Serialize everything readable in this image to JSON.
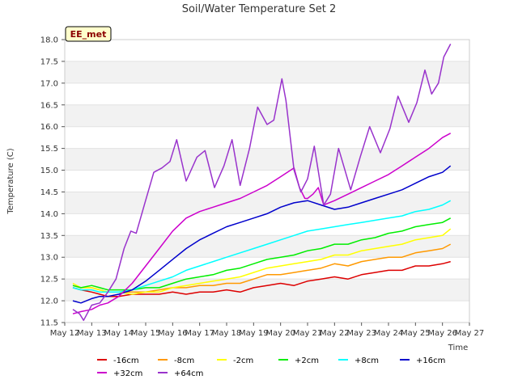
{
  "chart_data": {
    "type": "line",
    "title": "Soil/Water Temperature Set 2",
    "xlabel": "Time",
    "ylabel": "Temperature (C)",
    "badge": "EE_met",
    "xlim": [
      12,
      27
    ],
    "ylim": [
      11.5,
      18.0
    ],
    "x_ticks": [
      {
        "v": 12,
        "label": "May 12"
      },
      {
        "v": 13,
        "label": "May 13"
      },
      {
        "v": 14,
        "label": "May 14"
      },
      {
        "v": 15,
        "label": "May 15"
      },
      {
        "v": 16,
        "label": "May 16"
      },
      {
        "v": 17,
        "label": "May 17"
      },
      {
        "v": 18,
        "label": "May 18"
      },
      {
        "v": 19,
        "label": "May 19"
      },
      {
        "v": 20,
        "label": "May 20"
      },
      {
        "v": 21,
        "label": "May 21"
      },
      {
        "v": 22,
        "label": "May 22"
      },
      {
        "v": 23,
        "label": "May 23"
      },
      {
        "v": 24,
        "label": "May 24"
      },
      {
        "v": 25,
        "label": "May 25"
      },
      {
        "v": 26,
        "label": "May 26"
      },
      {
        "v": 27,
        "label": "May 27"
      }
    ],
    "y_ticks": [
      {
        "v": 11.5,
        "label": "11.5"
      },
      {
        "v": 12.0,
        "label": "12.0"
      },
      {
        "v": 12.5,
        "label": "12.5"
      },
      {
        "v": 13.0,
        "label": "13.0"
      },
      {
        "v": 13.5,
        "label": "13.5"
      },
      {
        "v": 14.0,
        "label": "14.0"
      },
      {
        "v": 14.5,
        "label": "14.5"
      },
      {
        "v": 15.0,
        "label": "15.0"
      },
      {
        "v": 15.5,
        "label": "15.5"
      },
      {
        "v": 16.0,
        "label": "16.0"
      },
      {
        "v": 16.5,
        "label": "16.5"
      },
      {
        "v": 17.0,
        "label": "17.0"
      },
      {
        "v": 17.5,
        "label": "17.5"
      },
      {
        "v": 18.0,
        "label": "18.0"
      }
    ],
    "series": [
      {
        "name": "-16cm",
        "color": "#dd0000",
        "x": [
          12.3,
          12.6,
          13,
          13.3,
          13.6,
          14,
          14.5,
          15,
          15.5,
          16,
          16.5,
          17,
          17.5,
          18,
          18.5,
          19,
          19.5,
          20,
          20.5,
          21,
          21.5,
          22,
          22.5,
          23,
          23.5,
          24,
          24.5,
          25,
          25.5,
          26,
          26.3
        ],
        "y": [
          12.3,
          12.25,
          12.2,
          12.15,
          12.1,
          12.1,
          12.15,
          12.15,
          12.15,
          12.2,
          12.15,
          12.2,
          12.2,
          12.25,
          12.2,
          12.3,
          12.35,
          12.4,
          12.35,
          12.45,
          12.5,
          12.55,
          12.5,
          12.6,
          12.65,
          12.7,
          12.7,
          12.8,
          12.8,
          12.85,
          12.9
        ]
      },
      {
        "name": "-8cm",
        "color": "#ff9900",
        "x": [
          12.3,
          12.6,
          13,
          13.3,
          13.6,
          14,
          14.5,
          15,
          15.5,
          16,
          16.5,
          17,
          17.5,
          18,
          18.5,
          19,
          19.5,
          20,
          20.5,
          21,
          21.5,
          22,
          22.5,
          23,
          23.5,
          24,
          24.5,
          25,
          25.5,
          26,
          26.3
        ],
        "y": [
          12.35,
          12.3,
          12.3,
          12.25,
          12.2,
          12.2,
          12.2,
          12.2,
          12.25,
          12.3,
          12.3,
          12.35,
          12.35,
          12.4,
          12.4,
          12.5,
          12.6,
          12.6,
          12.65,
          12.7,
          12.75,
          12.85,
          12.8,
          12.9,
          12.95,
          13.0,
          13.0,
          13.1,
          13.15,
          13.2,
          13.3
        ]
      },
      {
        "name": "-2cm",
        "color": "#ffff00",
        "x": [
          12.3,
          12.6,
          13,
          13.3,
          13.6,
          14,
          14.5,
          15,
          15.5,
          16,
          16.5,
          17,
          17.5,
          18,
          18.5,
          19,
          19.5,
          20,
          20.5,
          21,
          21.5,
          22,
          22.5,
          23,
          23.5,
          24,
          24.5,
          25,
          25.5,
          26,
          26.3
        ],
        "y": [
          12.4,
          12.3,
          12.3,
          12.25,
          12.2,
          12.2,
          12.15,
          12.2,
          12.2,
          12.3,
          12.35,
          12.4,
          12.45,
          12.5,
          12.55,
          12.65,
          12.75,
          12.8,
          12.85,
          12.9,
          12.95,
          13.05,
          13.05,
          13.15,
          13.2,
          13.25,
          13.3,
          13.4,
          13.45,
          13.5,
          13.65
        ]
      },
      {
        "name": "+2cm",
        "color": "#00ee00",
        "x": [
          12.3,
          12.6,
          13,
          13.3,
          13.6,
          14,
          14.5,
          15,
          15.5,
          16,
          16.5,
          17,
          17.5,
          18,
          18.5,
          19,
          19.5,
          20,
          20.5,
          21,
          21.5,
          22,
          22.5,
          23,
          23.5,
          24,
          24.5,
          25,
          25.5,
          26,
          26.3
        ],
        "y": [
          12.35,
          12.3,
          12.35,
          12.3,
          12.25,
          12.25,
          12.25,
          12.3,
          12.3,
          12.4,
          12.5,
          12.55,
          12.6,
          12.7,
          12.75,
          12.85,
          12.95,
          13.0,
          13.05,
          13.15,
          13.2,
          13.3,
          13.3,
          13.4,
          13.45,
          13.55,
          13.6,
          13.7,
          13.75,
          13.8,
          13.9
        ]
      },
      {
        "name": "+8cm",
        "color": "#00ffff",
        "x": [
          12.3,
          12.6,
          13,
          13.3,
          13.6,
          14,
          14.5,
          15,
          15.5,
          16,
          16.5,
          17,
          17.5,
          18,
          18.5,
          19,
          19.5,
          20,
          20.5,
          21,
          21.5,
          22,
          22.5,
          23,
          23.5,
          24,
          24.5,
          25,
          25.5,
          26,
          26.3
        ],
        "y": [
          12.3,
          12.25,
          12.25,
          12.2,
          12.2,
          12.2,
          12.25,
          12.35,
          12.45,
          12.55,
          12.7,
          12.8,
          12.9,
          13.0,
          13.1,
          13.2,
          13.3,
          13.4,
          13.5,
          13.6,
          13.65,
          13.7,
          13.75,
          13.8,
          13.85,
          13.9,
          13.95,
          14.05,
          14.1,
          14.2,
          14.3
        ]
      },
      {
        "name": "+16cm",
        "color": "#0000cc",
        "x": [
          12.3,
          12.6,
          13,
          13.3,
          13.6,
          14,
          14.5,
          15,
          15.5,
          16,
          16.5,
          17,
          17.5,
          18,
          18.5,
          19,
          19.5,
          20,
          20.5,
          21,
          21.5,
          22,
          22.5,
          23,
          23.5,
          24,
          24.5,
          25,
          25.5,
          26,
          26.3
        ],
        "y": [
          12.0,
          11.95,
          12.05,
          12.1,
          12.1,
          12.15,
          12.25,
          12.45,
          12.7,
          12.95,
          13.2,
          13.4,
          13.55,
          13.7,
          13.8,
          13.9,
          14.0,
          14.15,
          14.25,
          14.3,
          14.2,
          14.1,
          14.15,
          14.25,
          14.35,
          14.45,
          14.55,
          14.7,
          14.85,
          14.95,
          15.1
        ]
      },
      {
        "name": "+32cm",
        "color": "#cc00cc",
        "x": [
          12.3,
          12.6,
          13,
          13.3,
          13.6,
          14,
          14.5,
          15,
          15.5,
          16,
          16.5,
          17,
          17.5,
          18,
          18.5,
          19,
          19.5,
          20,
          20.5,
          20.7,
          20.9,
          21,
          21.2,
          21.4,
          21.6,
          22,
          22.5,
          23,
          23.5,
          24,
          24.5,
          25,
          25.5,
          26,
          26.3
        ],
        "y": [
          11.7,
          11.75,
          11.8,
          11.9,
          11.95,
          12.1,
          12.4,
          12.8,
          13.2,
          13.6,
          13.9,
          14.05,
          14.15,
          14.25,
          14.35,
          14.5,
          14.65,
          14.85,
          15.05,
          14.6,
          14.35,
          14.35,
          14.45,
          14.6,
          14.2,
          14.3,
          14.45,
          14.6,
          14.75,
          14.9,
          15.1,
          15.3,
          15.5,
          15.75,
          15.85
        ]
      },
      {
        "name": "+64cm",
        "color": "#9933cc",
        "x": [
          12.3,
          12.55,
          12.7,
          13,
          13.3,
          13.6,
          13.9,
          14.2,
          14.45,
          14.65,
          14.95,
          15.3,
          15.6,
          15.9,
          16.15,
          16.5,
          16.9,
          17.2,
          17.55,
          17.9,
          18.2,
          18.5,
          18.85,
          19.15,
          19.5,
          19.75,
          20.05,
          20.2,
          20.5,
          20.75,
          21.0,
          21.25,
          21.6,
          21.85,
          22.15,
          22.6,
          22.95,
          23.3,
          23.7,
          24.05,
          24.35,
          24.75,
          25.05,
          25.35,
          25.6,
          25.85,
          26.05,
          26.3
        ],
        "y": [
          11.8,
          11.7,
          11.55,
          11.9,
          11.95,
          12.2,
          12.5,
          13.2,
          13.6,
          13.55,
          14.2,
          14.95,
          15.05,
          15.2,
          15.7,
          14.75,
          15.3,
          15.45,
          14.6,
          15.1,
          15.7,
          14.65,
          15.5,
          16.45,
          16.05,
          16.15,
          17.1,
          16.6,
          15.0,
          14.5,
          14.8,
          15.55,
          14.2,
          14.45,
          15.5,
          14.55,
          15.3,
          16.0,
          15.4,
          15.95,
          16.7,
          16.1,
          16.55,
          17.3,
          16.75,
          17.0,
          17.6,
          17.9
        ]
      }
    ]
  }
}
